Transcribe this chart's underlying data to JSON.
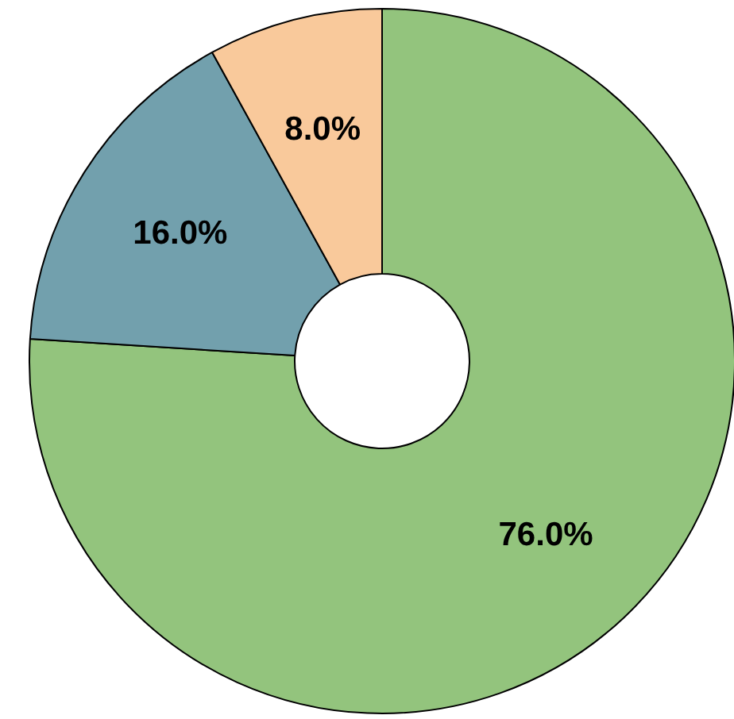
{
  "chart_data": {
    "type": "donut",
    "categories": [
      null,
      null,
      null
    ],
    "values": [
      76.0,
      16.0,
      8.0
    ],
    "colors": [
      "#93c47d",
      "#72a0ad",
      "#f9c99b"
    ],
    "value_labels": [
      "76.0%",
      "16.0%",
      "8.0%"
    ]
  }
}
